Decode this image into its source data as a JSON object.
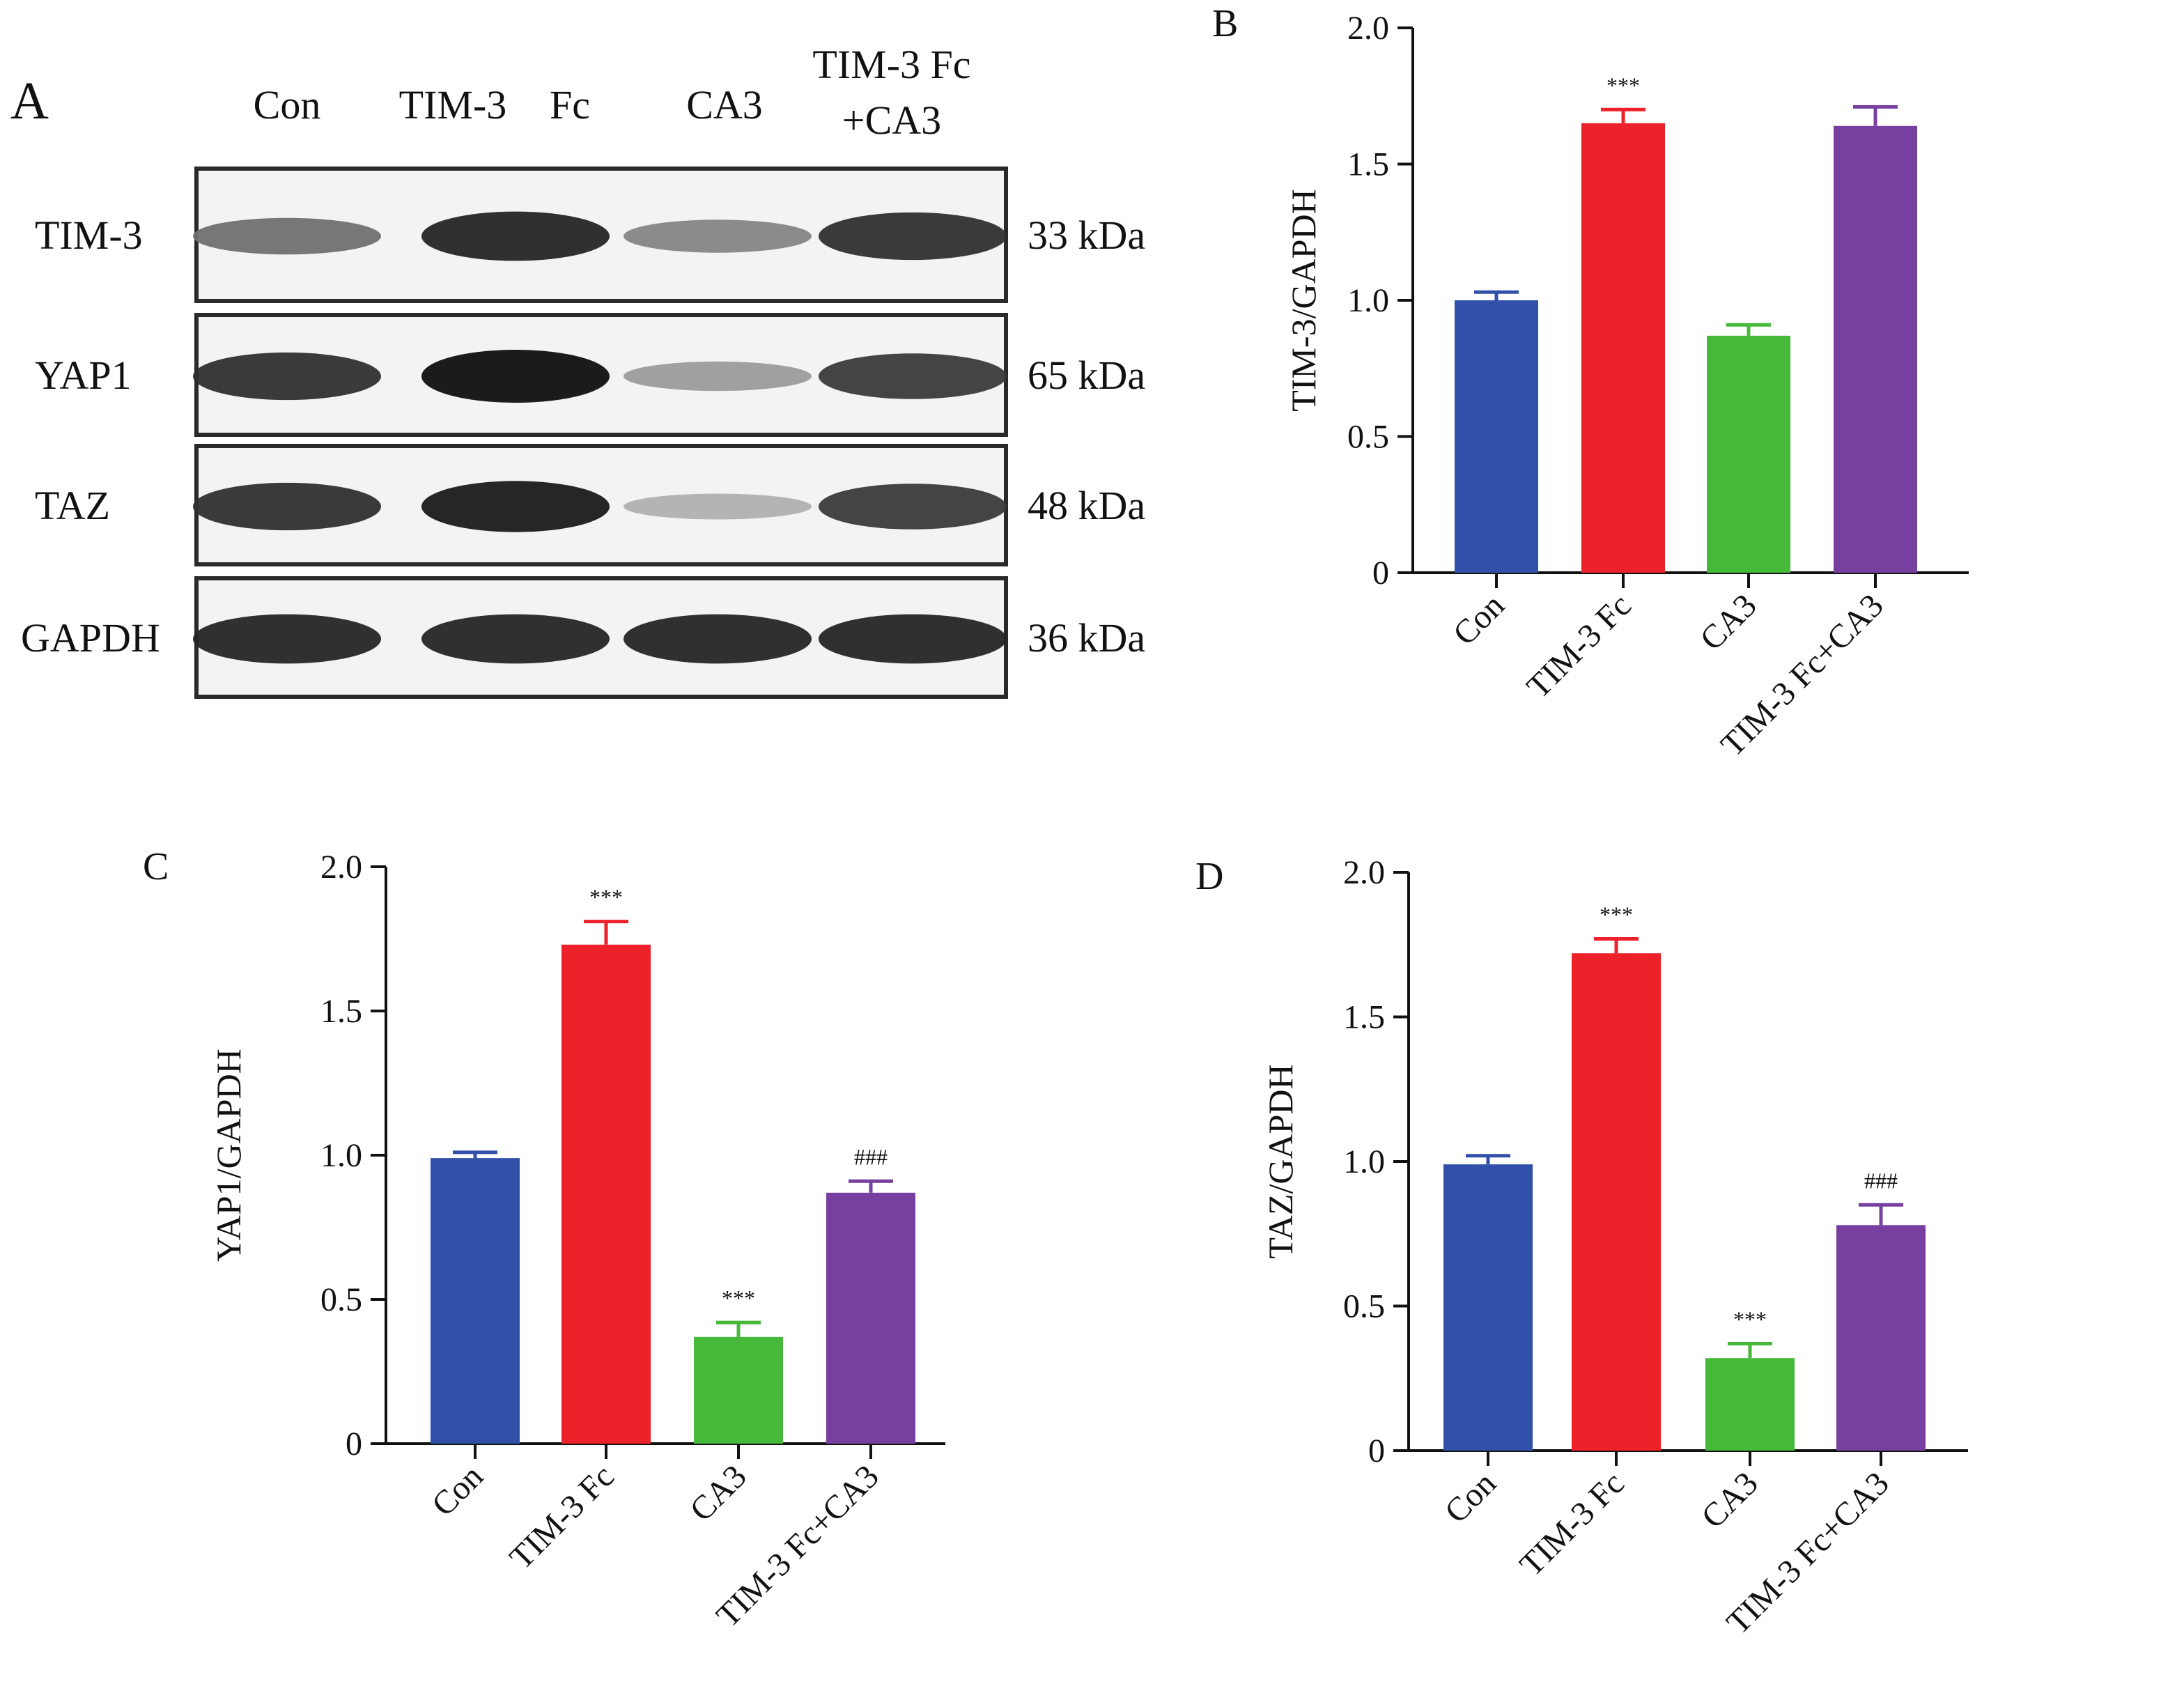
{
  "panel_labels": {
    "A": "A",
    "B": "B",
    "C": "C",
    "D": "D"
  },
  "blot": {
    "lanes": [
      "Con",
      "TIM-3 Fc",
      "CA3",
      "TIM-3 Fc +CA3"
    ],
    "lane_header_lines": [
      [
        "Con"
      ],
      [
        "TIM-3",
        "Fc"
      ],
      [
        "CA3"
      ],
      [
        "TIM-3 Fc",
        "+CA3"
      ]
    ],
    "rows": [
      {
        "protein": "TIM-3",
        "size": "33 kDa",
        "band_intensity": [
          0.55,
          0.9,
          0.45,
          0.85
        ]
      },
      {
        "protein": "YAP1",
        "size": "65 kDa",
        "band_intensity": [
          0.85,
          1.0,
          0.35,
          0.8
        ]
      },
      {
        "protein": "TAZ",
        "size": "48 kDa",
        "band_intensity": [
          0.85,
          0.95,
          0.25,
          0.8
        ]
      },
      {
        "protein": "GAPDH",
        "size": "36 kDa",
        "band_intensity": [
          0.9,
          0.9,
          0.9,
          0.9
        ]
      }
    ]
  },
  "colors": {
    "Con": "#3050AA",
    "TIM-3 Fc": "#ED2129",
    "CA3": "#46B93A",
    "TIM-3 Fc+CA3": "#7740A0"
  },
  "chart_data": [
    {
      "panel": "B",
      "type": "bar",
      "ylabel": "TIM-3/GAPDH",
      "categories": [
        "Con",
        "TIM-3 Fc",
        "CA3",
        "TIM-3 Fc+CA3"
      ],
      "values": [
        1.0,
        1.65,
        0.87,
        1.64
      ],
      "errors": [
        0.03,
        0.05,
        0.04,
        0.07
      ],
      "annotations": [
        "",
        "***",
        "",
        ""
      ],
      "ylim": [
        0,
        2.0
      ],
      "yticks": [
        0,
        0.5,
        1.0,
        1.5,
        2.0
      ],
      "ytick_labels": [
        "0",
        "0.5",
        "1.0",
        "1.5",
        "2.0"
      ]
    },
    {
      "panel": "C",
      "type": "bar",
      "ylabel": "YAP1/GAPDH",
      "categories": [
        "Con",
        "TIM-3 Fc",
        "CA3",
        "TIM-3 Fc+CA3"
      ],
      "values": [
        0.99,
        1.73,
        0.37,
        0.87
      ],
      "errors": [
        0.02,
        0.08,
        0.05,
        0.04
      ],
      "annotations": [
        "",
        "***",
        "***",
        "###"
      ],
      "ylim": [
        0,
        2.0
      ],
      "yticks": [
        0,
        0.5,
        1.0,
        1.5,
        2.0
      ],
      "ytick_labels": [
        "0",
        "0.5",
        "1.0",
        "1.5",
        "2.0"
      ]
    },
    {
      "panel": "D",
      "type": "bar",
      "ylabel": "TAZ/GAPDH",
      "categories": [
        "Con",
        "TIM-3 Fc",
        "CA3",
        "TIM-3 Fc+CA3"
      ],
      "values": [
        0.99,
        1.72,
        0.32,
        0.78
      ],
      "errors": [
        0.03,
        0.05,
        0.05,
        0.07
      ],
      "annotations": [
        "",
        "***",
        "***",
        "###"
      ],
      "ylim": [
        0,
        2.0
      ],
      "yticks": [
        0,
        0.5,
        1.0,
        1.5,
        2.0
      ],
      "ytick_labels": [
        "0",
        "0.5",
        "1.0",
        "1.5",
        "2.0"
      ]
    }
  ]
}
